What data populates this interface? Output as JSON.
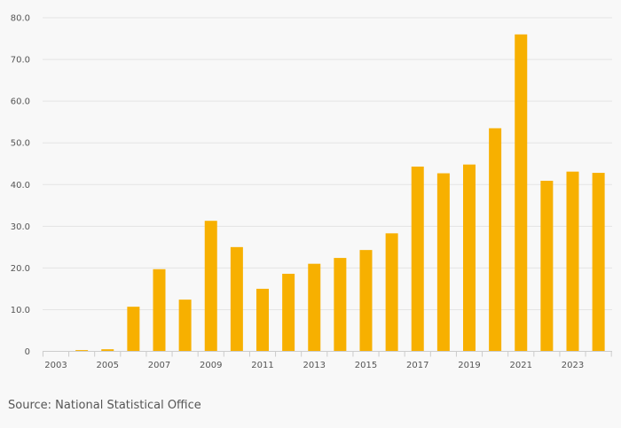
{
  "chart_data": {
    "type": "bar",
    "title": "",
    "xlabel": "",
    "ylabel": "",
    "categories": [
      "2003",
      "2004",
      "2005",
      "2006",
      "2007",
      "2008",
      "2009",
      "2010",
      "2011",
      "2012",
      "2013",
      "2014",
      "2015",
      "2016",
      "2017",
      "2018",
      "2019",
      "2020",
      "2021",
      "2022",
      "2023",
      "2024"
    ],
    "x_tick_labels": [
      "2003",
      "2005",
      "2007",
      "2009",
      "2011",
      "2013",
      "2015",
      "2017",
      "2019",
      "2021",
      "2023"
    ],
    "values": [
      0.0,
      0.3,
      0.5,
      10.7,
      19.7,
      12.4,
      31.3,
      25.0,
      15.0,
      18.6,
      21.0,
      22.4,
      24.3,
      28.3,
      44.3,
      42.7,
      44.8,
      53.5,
      76.0,
      40.9,
      43.1,
      42.8
    ],
    "ylim": [
      0,
      80
    ],
    "y_ticks": [
      0,
      10,
      20,
      30,
      40,
      50,
      60,
      70,
      80
    ],
    "y_tick_labels": [
      "0",
      "10.0",
      "20.0",
      "30.0",
      "40.0",
      "50.0",
      "60.0",
      "70.0",
      "80.0"
    ],
    "grid": true,
    "legend": "none",
    "bar_color": "#f7b000",
    "source": "Source: National Statistical Office"
  }
}
